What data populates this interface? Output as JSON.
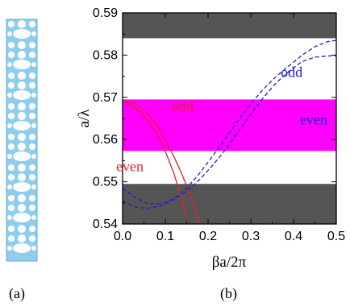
{
  "panel_labels": {
    "left": "(a)",
    "right": "(b)"
  },
  "chart_data": {
    "type": "line",
    "title": "",
    "xlabel": "βa/2π",
    "ylabel": "a/λ",
    "xlim": [
      0.0,
      0.5
    ],
    "ylim": [
      0.54,
      0.59
    ],
    "x_ticks": [
      "0.0",
      "0.1",
      "0.2",
      "0.3",
      "0.4",
      "0.5"
    ],
    "y_ticks": [
      "0.54",
      "0.55",
      "0.56",
      "0.57",
      "0.58",
      "0.59"
    ],
    "grid": false,
    "bands": [
      {
        "y_range": [
          0.584,
          0.59
        ],
        "color": "#555555"
      },
      {
        "y_range": [
          0.5573,
          0.5695
        ],
        "color": "#ff00ff"
      },
      {
        "y_range": [
          0.54,
          0.5495
        ],
        "color": "#555555"
      }
    ],
    "annotations": [
      {
        "text": "odd",
        "x": 0.115,
        "y": 0.5668,
        "color": "#e8202a"
      },
      {
        "text": "even",
        "x": -0.015,
        "y": 0.5525,
        "color": "#e8202a"
      },
      {
        "text": "odd",
        "x": 0.37,
        "y": 0.5748,
        "color": "#2020c8"
      },
      {
        "text": "even",
        "x": 0.415,
        "y": 0.5636,
        "color": "#2020c8"
      }
    ],
    "series": [
      {
        "color": "#e8202a",
        "dash": "solid",
        "x": [
          0.0,
          0.02,
          0.04,
          0.06,
          0.08,
          0.1,
          0.12,
          0.14,
          0.16,
          0.18
        ],
        "y": [
          0.5693,
          0.5688,
          0.5677,
          0.566,
          0.5634,
          0.56,
          0.556,
          0.5515,
          0.5465,
          0.5405
        ]
      },
      {
        "color": "#e8202a",
        "dash": "solid",
        "x": [
          0.0,
          0.02,
          0.04,
          0.06,
          0.08,
          0.1,
          0.12,
          0.14,
          0.15
        ],
        "y": [
          0.569,
          0.5682,
          0.5667,
          0.5645,
          0.5613,
          0.5572,
          0.552,
          0.5455,
          0.541
        ]
      },
      {
        "color": "#2020c8",
        "dash": "dashed",
        "x": [
          0.0,
          0.03,
          0.06,
          0.09,
          0.12,
          0.15,
          0.18,
          0.21,
          0.24,
          0.27,
          0.3,
          0.33,
          0.36,
          0.39,
          0.42,
          0.45,
          0.48,
          0.5
        ],
        "y": [
          0.5485,
          0.5462,
          0.5448,
          0.5448,
          0.546,
          0.5485,
          0.552,
          0.556,
          0.5602,
          0.5645,
          0.5685,
          0.572,
          0.575,
          0.5775,
          0.58,
          0.582,
          0.5832,
          0.5835
        ]
      },
      {
        "color": "#2020c8",
        "dash": "dashed",
        "x": [
          0.0,
          0.03,
          0.06,
          0.09,
          0.12,
          0.15,
          0.18,
          0.21,
          0.24,
          0.27,
          0.3,
          0.33,
          0.36,
          0.39,
          0.42,
          0.45,
          0.48,
          0.5
        ],
        "y": [
          0.5455,
          0.544,
          0.5437,
          0.5443,
          0.5458,
          0.5478,
          0.5505,
          0.5538,
          0.5575,
          0.5618,
          0.566,
          0.57,
          0.5735,
          0.5762,
          0.5785,
          0.5795,
          0.5798,
          0.5798
        ]
      }
    ]
  }
}
